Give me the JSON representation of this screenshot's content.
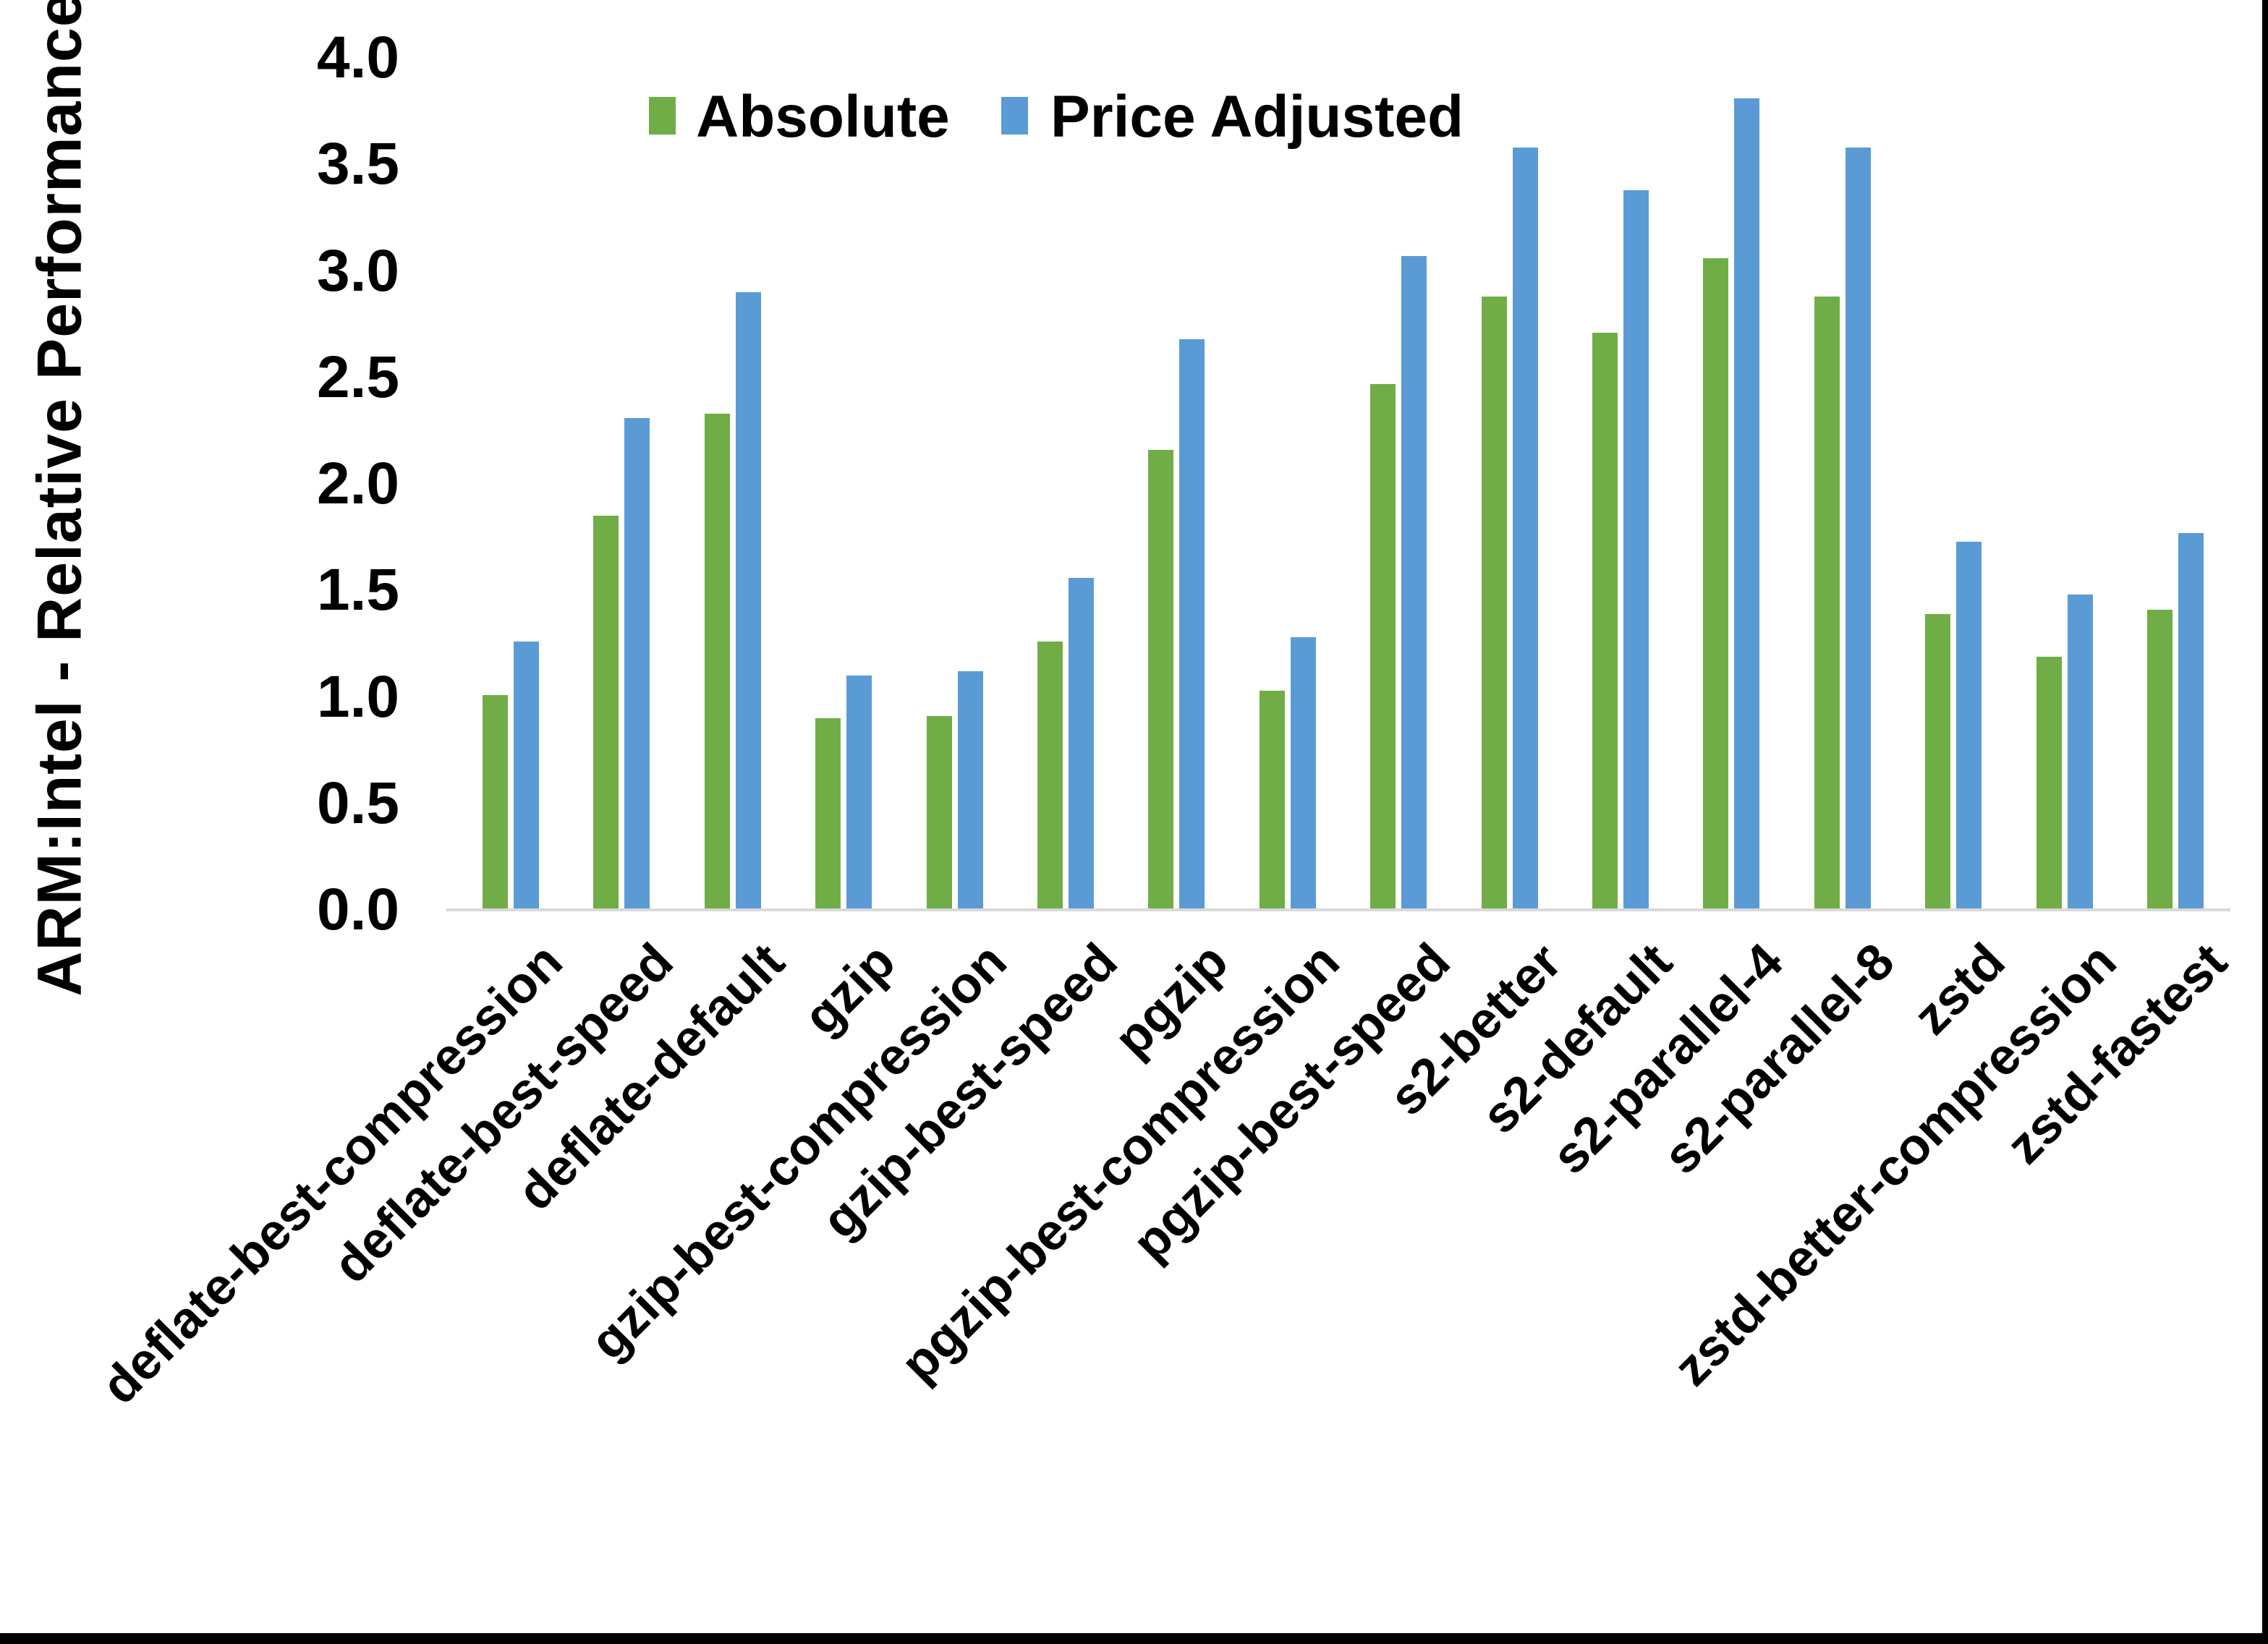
{
  "figure": {
    "background": "#ffffff",
    "border_color": "#000000"
  },
  "chart_data": {
    "type": "bar",
    "title": "",
    "ylabel": "ARM:Intel - Relative Performance",
    "xlabel": "",
    "ylim": [
      0.0,
      4.0
    ],
    "ytick_labels": [
      "0.0",
      "0.5",
      "1.0",
      "1.5",
      "2.0",
      "2.5",
      "3.0",
      "3.5",
      "4.0"
    ],
    "grid": false,
    "legend_position": "top-center",
    "axis_line_color": "#d9d9d9",
    "text_color": "#000000",
    "categories": [
      "deflate-best-compression",
      "deflate-best-speed",
      "deflate-default",
      "gzip",
      "gzip-best-compression",
      "gzip-best-speed",
      "pgzip",
      "pgzip-best-compression",
      "pgzip-best-speed",
      "s2-better",
      "s2-default",
      "s2-parallel-4",
      "s2-parallel-8",
      "zstd",
      "zstd-better-compression",
      "zstd-fastest"
    ],
    "series": [
      {
        "name": "Absolute",
        "color": "#70AD47",
        "values": [
          1.01,
          1.85,
          2.33,
          0.9,
          0.91,
          1.26,
          2.16,
          1.03,
          2.47,
          2.88,
          2.71,
          3.06,
          2.88,
          1.39,
          1.19,
          1.41
        ]
      },
      {
        "name": "Price Adjusted",
        "color": "#5B9BD5",
        "values": [
          1.26,
          2.31,
          2.9,
          1.1,
          1.12,
          1.56,
          2.68,
          1.28,
          3.07,
          3.58,
          3.38,
          3.81,
          3.58,
          1.73,
          1.48,
          1.77
        ]
      }
    ]
  }
}
